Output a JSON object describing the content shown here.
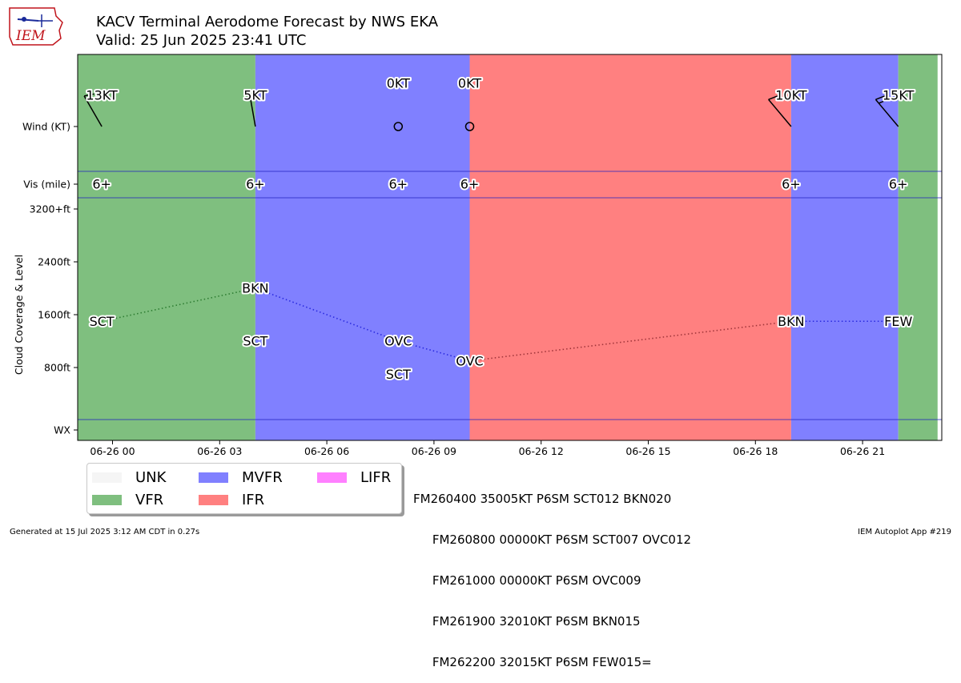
{
  "header": {
    "title_line1": "KACV Terminal Aerodome Forecast by NWS EKA",
    "title_line2": "Valid: 25 Jun 2025 23:41 UTC"
  },
  "logo": {
    "text": "IEM",
    "color": "#c0141b",
    "icon": "iem-logo"
  },
  "legend": [
    {
      "label": "UNK",
      "color": "#f5f5f5"
    },
    {
      "label": "VFR",
      "color": "#7fbf7f"
    },
    {
      "label": "MVFR",
      "color": "#8080ff"
    },
    {
      "label": "IFR",
      "color": "#ff8080"
    },
    {
      "label": "LIFR",
      "color": "#ff80ff"
    }
  ],
  "taf_raw": [
    "FM260400 35005KT P6SM SCT012 BKN020",
    "     FM260800 00000KT P6SM SCT007 OVC012",
    "     FM261000 00000KT P6SM OVC009",
    "     FM261900 32010KT P6SM BKN015",
    "     FM262200 32015KT P6SM FEW015="
  ],
  "footer": {
    "left": "Generated at 15 Jul 2025 3:12 AM CDT in 0.27s",
    "right": "IEM Autoplot App #219"
  },
  "chart_data": {
    "type": "timeline",
    "time_unit": "hours after 06-26 00:00 UTC",
    "xlim": [
      -1.3,
      23.1
    ],
    "xticks": [
      {
        "t": 0,
        "label": "06-26 00"
      },
      {
        "t": 3,
        "label": "06-26 03"
      },
      {
        "t": 6,
        "label": "06-26 06"
      },
      {
        "t": 9,
        "label": "06-26 09"
      },
      {
        "t": 12,
        "label": "06-26 12"
      },
      {
        "t": 15,
        "label": "06-26 15"
      },
      {
        "t": 18,
        "label": "06-26 18"
      },
      {
        "t": 21,
        "label": "06-26 21"
      }
    ],
    "row_labels": {
      "wind": "Wind (KT)",
      "vis": "Vis (mile)",
      "wx": "WX",
      "cloud_axis": "Cloud Coverage & Level"
    },
    "cloud_yticks": [
      "3200+ft",
      "2400ft",
      "1600ft",
      "800ft"
    ],
    "cloud_ylim_ft": [
      -800,
      3400
    ],
    "cloud_ytick_values_ft": [
      3200,
      2400,
      1600,
      800
    ],
    "categories": [
      {
        "start": -1.3,
        "end": 4.0,
        "category": "VFR"
      },
      {
        "start": 4.0,
        "end": 10.0,
        "category": "MVFR"
      },
      {
        "start": 10.0,
        "end": 19.0,
        "category": "IFR"
      },
      {
        "start": 19.0,
        "end": 22.0,
        "category": "MVFR"
      },
      {
        "start": 22.0,
        "end": 23.1,
        "category": "VFR"
      }
    ],
    "forecasts": [
      {
        "t": -0.3,
        "wind_dir": 330,
        "wind_kt": 13,
        "wind_label": "13KT",
        "vis": "6+",
        "clouds": [
          {
            "cover": "SCT",
            "height_ft": 1500,
            "ceiling": true
          }
        ]
      },
      {
        "t": 4.0,
        "wind_dir": 350,
        "wind_kt": 5,
        "wind_label": "5KT",
        "vis": "6+",
        "clouds": [
          {
            "cover": "SCT",
            "height_ft": 1200,
            "ceiling": false
          },
          {
            "cover": "BKN",
            "height_ft": 2000,
            "ceiling": true
          }
        ]
      },
      {
        "t": 8.0,
        "wind_dir": 0,
        "wind_kt": 0,
        "wind_label": "0KT",
        "vis": "6+",
        "clouds": [
          {
            "cover": "SCT",
            "height_ft": 700,
            "ceiling": false
          },
          {
            "cover": "OVC",
            "height_ft": 1200,
            "ceiling": true
          }
        ]
      },
      {
        "t": 10.0,
        "wind_dir": 0,
        "wind_kt": 0,
        "wind_label": "0KT",
        "vis": "6+",
        "clouds": [
          {
            "cover": "OVC",
            "height_ft": 900,
            "ceiling": true
          }
        ]
      },
      {
        "t": 19.0,
        "wind_dir": 320,
        "wind_kt": 10,
        "wind_label": "10KT",
        "vis": "6+",
        "clouds": [
          {
            "cover": "BKN",
            "height_ft": 1500,
            "ceiling": true
          }
        ]
      },
      {
        "t": 22.0,
        "wind_dir": 320,
        "wind_kt": 15,
        "wind_label": "15KT",
        "vis": "6+",
        "clouds": [
          {
            "cover": "FEW",
            "height_ft": 1500,
            "ceiling": true
          }
        ]
      }
    ],
    "ceiling_line_colors": [
      "#2e7d32",
      "#2a2adf",
      "#2a2adf",
      "#a0353a",
      "#2a2adf"
    ]
  }
}
